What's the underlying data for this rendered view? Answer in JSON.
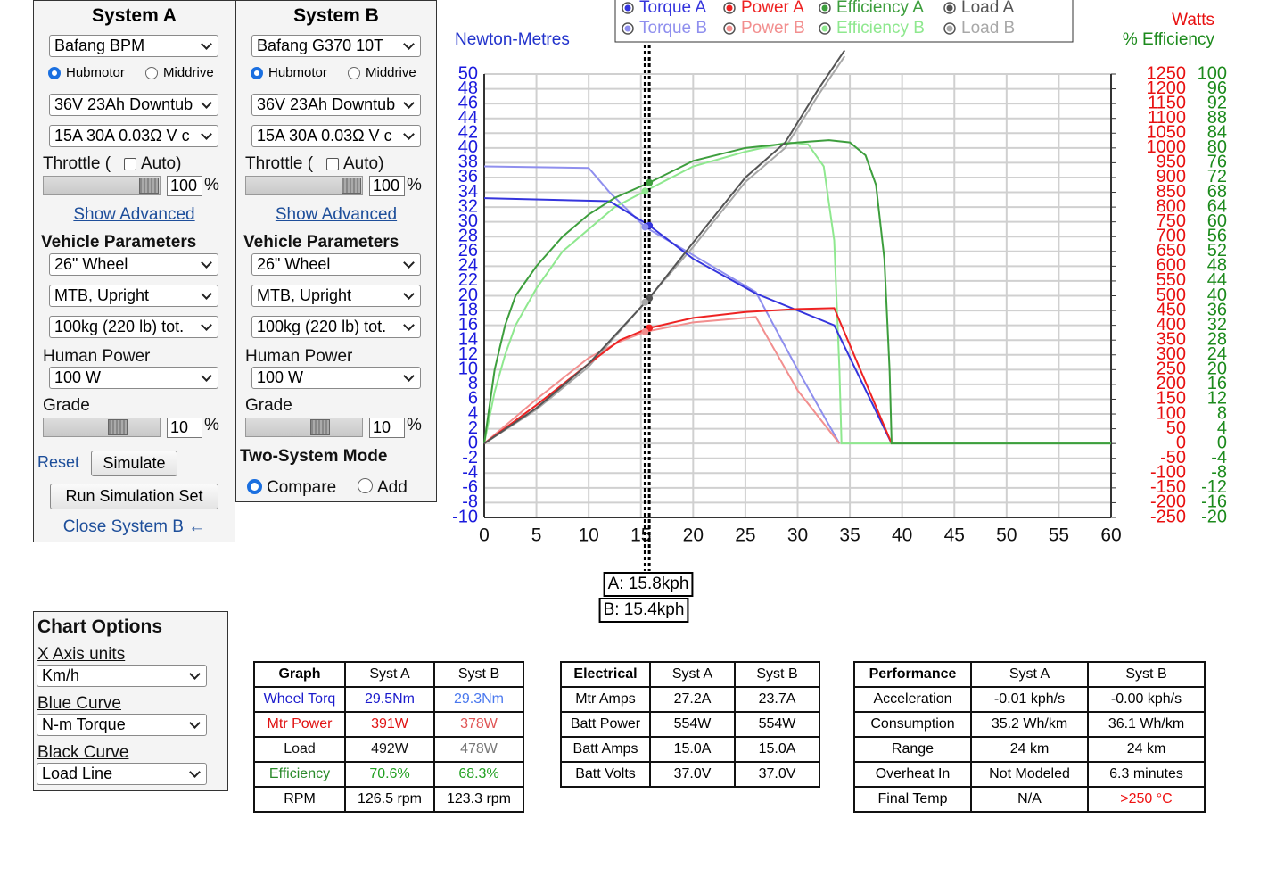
{
  "system_a": {
    "title": "System A",
    "motor": "Bafang BPM",
    "hub_option": "Hubmotor",
    "mid_option": "Middrive",
    "battery": "36V 23Ah Downtub",
    "controller": "15A 30A 0.03Ω V c",
    "throttle_label": "Throttle (",
    "auto_label": "Auto)",
    "throttle_value": "100",
    "throttle_unit": "%",
    "show_advanced": "Show Advanced",
    "vehicle_title": "Vehicle Parameters",
    "wheel": "26\"  Wheel",
    "position": "MTB, Upright",
    "weight": "100kg (220 lb) tot.",
    "human_label": "Human Power",
    "human_power": "100 W",
    "grade_label": "Grade",
    "grade_value": "10",
    "grade_unit": "%",
    "reset": "Reset",
    "simulate": "Simulate",
    "run_set": "Run Simulation Set",
    "close_b": "Close System B ←"
  },
  "system_b": {
    "title": "System B",
    "motor": "Bafang G370 10T",
    "hub_option": "Hubmotor",
    "mid_option": "Middrive",
    "battery": "36V 23Ah Downtub",
    "controller": "15A 30A 0.03Ω V c",
    "throttle_label": "Throttle (",
    "auto_label": "Auto)",
    "throttle_value": "100",
    "throttle_unit": "%",
    "show_advanced": "Show Advanced",
    "vehicle_title": "Vehicle Parameters",
    "wheel": "26\"  Wheel",
    "position": "MTB, Upright",
    "weight": "100kg (220 lb) tot.",
    "human_label": "Human Power",
    "human_power": "100 W",
    "grade_label": "Grade",
    "grade_value": "10",
    "grade_unit": "%",
    "two_system_title": "Two-System Mode",
    "compare": "Compare",
    "add": "Add"
  },
  "chart_options": {
    "title": "Chart Options",
    "x_label": "X Axis units",
    "x_value": "Km/h",
    "blue_label": "Blue Curve",
    "blue_value": "N-m Torque",
    "black_label": "Black Curve",
    "black_value": "Load Line"
  },
  "tables": [
    {
      "header": [
        "Graph",
        "Syst A",
        "Syst B"
      ],
      "rows": [
        [
          "Wheel Torq",
          "29.5Nm",
          "29.3Nm"
        ],
        [
          "Mtr Power",
          "391W",
          "378W"
        ],
        [
          "Load",
          "492W",
          "478W"
        ],
        [
          "Efficiency",
          "70.6%",
          "68.3%"
        ],
        [
          "RPM",
          "126.5 rpm",
          "123.3 rpm"
        ]
      ]
    },
    {
      "header": [
        "Electrical",
        "Syst A",
        "Syst B"
      ],
      "rows": [
        [
          "Mtr Amps",
          "27.2A",
          "23.7A"
        ],
        [
          "Batt Power",
          "554W",
          "554W"
        ],
        [
          "Batt Amps",
          "15.0A",
          "15.0A"
        ],
        [
          "Batt Volts",
          "37.0V",
          "37.0V"
        ]
      ]
    },
    {
      "header": [
        "Performance",
        "Syst A",
        "Syst B"
      ],
      "rows": [
        [
          "Acceleration",
          "-0.01 kph/s",
          "-0.00 kph/s"
        ],
        [
          "Consumption",
          "35.2 Wh/km",
          "36.1 Wh/km"
        ],
        [
          "Range",
          "24 km",
          "24 km"
        ],
        [
          "Overheat In",
          "Not Modeled",
          "6.3 minutes"
        ],
        [
          "Final Temp",
          "N/A",
          ">250 °C"
        ]
      ]
    }
  ],
  "chart_data": {
    "type": "line",
    "y_label": "Newton-Metres",
    "y2_label": "Watts",
    "y3_label": "% Efficiency",
    "xlim": [
      0,
      60
    ],
    "xticks": [
      0,
      5,
      10,
      15,
      20,
      25,
      30,
      35,
      40,
      45,
      50,
      55,
      60
    ],
    "ylim": [
      -10,
      50
    ],
    "yticks": [
      -10,
      -8,
      -6,
      -4,
      -2,
      0,
      2,
      4,
      6,
      8,
      10,
      12,
      14,
      16,
      18,
      20,
      22,
      24,
      26,
      28,
      30,
      32,
      34,
      36,
      38,
      40,
      42,
      44,
      46,
      48,
      50
    ],
    "y2lim": [
      -250,
      1250
    ],
    "y2ticks": [
      -250,
      -200,
      -150,
      -100,
      -50,
      0,
      50,
      100,
      150,
      200,
      250,
      300,
      350,
      400,
      450,
      500,
      550,
      600,
      650,
      700,
      750,
      800,
      850,
      900,
      950,
      1000,
      1050,
      1100,
      1150,
      1200,
      1250
    ],
    "y3lim": [
      -20,
      100
    ],
    "y3ticks": [
      -20,
      -16,
      -12,
      -8,
      -4,
      0,
      4,
      8,
      12,
      16,
      20,
      24,
      28,
      32,
      36,
      40,
      44,
      48,
      52,
      56,
      60,
      64,
      68,
      72,
      76,
      80,
      84,
      88,
      92,
      96,
      100
    ],
    "grid": true,
    "cursor_x": [
      15.8,
      15.4
    ],
    "cursor_labels": [
      "A: 15.8kph",
      "B: 15.4kph"
    ],
    "series": [
      {
        "name": "Torque A",
        "color": "#3535dd",
        "x": [
          0,
          12,
          13.5,
          15.8,
          20,
          26,
          33.5,
          39
        ],
        "values": [
          33.2,
          32.8,
          31.5,
          29.5,
          25,
          20.3,
          16,
          0
        ]
      },
      {
        "name": "Power A",
        "color": "#ee2222",
        "axis": "y2",
        "x": [
          0,
          5,
          10,
          13,
          15.8,
          20,
          25,
          30,
          33.5,
          39
        ],
        "values": [
          0,
          130,
          270,
          350,
          391,
          425,
          445,
          455,
          458,
          0
        ]
      },
      {
        "name": "Efficiency A",
        "color": "#3d9e3d",
        "axis": "y3",
        "x": [
          0,
          1,
          2,
          3,
          5,
          7.5,
          10,
          12.5,
          15.8,
          20,
          25,
          30,
          33,
          35,
          36.5,
          37.5,
          38.3,
          38.8,
          39,
          60
        ],
        "values": [
          0,
          20,
          32,
          40,
          48,
          56,
          62,
          66.5,
          70.6,
          76.5,
          80,
          81.5,
          82.1,
          81.5,
          78,
          70,
          50,
          20,
          0,
          0
        ]
      },
      {
        "name": "Load A",
        "color": "#555555",
        "axis": "y2",
        "x": [
          0,
          5,
          10,
          15.8,
          20,
          25,
          28.8,
          32,
          34.5
        ],
        "values": [
          0,
          120,
          270,
          492,
          680,
          900,
          1018,
          1200,
          1330
        ]
      },
      {
        "name": "Torque B",
        "color": "#8f8fee",
        "x": [
          0,
          10,
          12,
          15.4,
          20,
          26,
          30,
          34
        ],
        "values": [
          37.5,
          37.3,
          34,
          29.3,
          25.5,
          20.5,
          10,
          0
        ]
      },
      {
        "name": "Power B",
        "color": "#f28f8f",
        "axis": "y2",
        "x": [
          0,
          5,
          10,
          13,
          15.4,
          20,
          26,
          30,
          34
        ],
        "values": [
          0,
          150,
          290,
          345,
          378,
          410,
          428,
          180,
          0
        ]
      },
      {
        "name": "Efficiency B",
        "color": "#8fe88f",
        "axis": "y3",
        "x": [
          0,
          1,
          2,
          3,
          5,
          7.5,
          10,
          12.5,
          15.4,
          20,
          25,
          29,
          31,
          32.5,
          33.5,
          34,
          34.2,
          60
        ],
        "values": [
          0,
          14,
          24,
          32,
          42,
          52,
          58,
          64,
          68.3,
          75,
          79,
          81.5,
          81,
          75,
          55,
          20,
          0,
          0
        ]
      },
      {
        "name": "Load B",
        "color": "#a8a8a8",
        "axis": "y2",
        "x": [
          0,
          5,
          10,
          15.4,
          20,
          25,
          28.8,
          32,
          34.5
        ],
        "values": [
          0,
          115,
          260,
          478,
          665,
          885,
          1000,
          1180,
          1310
        ]
      }
    ]
  }
}
